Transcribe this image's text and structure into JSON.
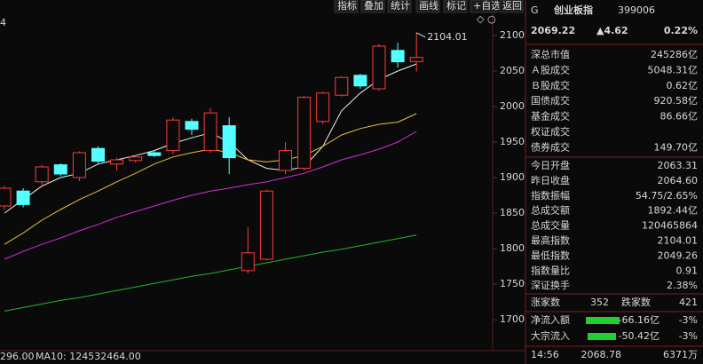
{
  "toolbar": {
    "corner_label": "4",
    "buttons": [
      "指标",
      "叠加",
      "统计",
      "画线",
      "标记",
      "+自选",
      "返回"
    ]
  },
  "chart_data": {
    "type": "candlestick",
    "ylim": [
      1660,
      2130
    ],
    "yticks": [
      1700,
      1750,
      1800,
      1850,
      1900,
      1950,
      2000,
      2050,
      2100
    ],
    "up_color": "#ff3c3c",
    "down_color": "#54ffff",
    "open": [
      1860,
      1881,
      1894,
      1918,
      1900,
      1941,
      1919,
      1924,
      1935,
      1938,
      1979,
      1938,
      1973,
      1769,
      1785,
      1910,
      1913,
      1979,
      2016,
      2044,
      2025,
      2079,
      2063.31
    ],
    "close": [
      1885,
      1862,
      1915,
      1905,
      1935,
      1923,
      1925,
      1929,
      1931,
      1981,
      1968,
      1991,
      1928,
      1794,
      1881,
      1938,
      2013,
      2019,
      2041,
      2029,
      2085,
      2063,
      2069.22
    ],
    "high": [
      1888,
      1885,
      1918,
      1920,
      1937,
      1944,
      1928,
      1932,
      1937,
      1985,
      1983,
      1998,
      1985,
      1830,
      1883,
      1950,
      2015,
      2021,
      2043,
      2046,
      2088,
      2090,
      2104.01
    ],
    "low": [
      1855,
      1858,
      1890,
      1902,
      1895,
      1920,
      1910,
      1921,
      1929,
      1933,
      1960,
      1935,
      1905,
      1765,
      1783,
      1905,
      1910,
      1975,
      2014,
      2025,
      2022,
      2055,
      2049.26
    ],
    "ma_lines": [
      {
        "color": "#f0f0f0",
        "values": [
          1850,
          1869,
          1888,
          1900,
          1906,
          1919,
          1925,
          1931,
          1938,
          1948,
          1956,
          1963,
          1950,
          1925,
          1913,
          1910,
          1915,
          1944,
          1994,
          2019,
          2038,
          2050,
          2060
        ]
      },
      {
        "color": "#e8c23a",
        "values": [
          1806,
          1822,
          1840,
          1855,
          1869,
          1881,
          1894,
          1906,
          1919,
          1929,
          1935,
          1940,
          1935,
          1925,
          1922,
          1925,
          1931,
          1944,
          1960,
          1969,
          1975,
          1978,
          1990
        ]
      },
      {
        "color": "#d22ed6",
        "values": [
          1785,
          1796,
          1806,
          1815,
          1825,
          1834,
          1844,
          1852,
          1860,
          1868,
          1875,
          1881,
          1885,
          1890,
          1894,
          1900,
          1906,
          1915,
          1925,
          1932,
          1940,
          1950,
          1965
        ]
      },
      {
        "color": "#1fb82e",
        "values": [
          1712,
          1717,
          1722,
          1727,
          1731,
          1736,
          1741,
          1746,
          1751,
          1756,
          1761,
          1765,
          1770,
          1775,
          1780,
          1785,
          1790,
          1795,
          1799,
          1804,
          1809,
          1814,
          1819
        ]
      }
    ],
    "annotation": 2104.01,
    "footer": [
      "296.00",
      "MA10: 124532464.00"
    ]
  },
  "panel": {
    "header": {
      "market": "G",
      "name": "创业板指",
      "code": "399006"
    },
    "quote": {
      "price": "2069.22",
      "change": "▲4.62",
      "percent": "0.22%"
    },
    "market_rows": [
      {
        "label": "深总市值",
        "value": "245286亿",
        "color": "#e8e8e8"
      },
      {
        "label": "Ａ股成交",
        "value": "5048.31亿",
        "color": "#e8c23a"
      },
      {
        "label": "Ｂ股成交",
        "value": "0.62亿",
        "color": "#e8c23a"
      },
      {
        "label": "国债成交",
        "value": "920.58亿",
        "color": "#e8c23a"
      },
      {
        "label": "基金成交",
        "value": "86.66亿",
        "color": "#e8c23a"
      },
      {
        "label": "权证成交"
      },
      {
        "label": "债券成交",
        "value": "149.70亿",
        "color": "#e8c23a"
      }
    ],
    "index_rows": [
      {
        "label": "今日开盘",
        "value": "2063.31",
        "color": "#ff3c3c"
      },
      {
        "label": "昨日收盘",
        "value": "2064.60",
        "color": "#e8e8e8"
      },
      {
        "label": "指数振幅",
        "value": "54.75/2.65%",
        "color": "#e8e8e8"
      },
      {
        "label": "总成交额",
        "value": "1892.44亿",
        "color": "#e8c23a"
      },
      {
        "label": "总成交量",
        "value": "120465864",
        "color": "#e8c23a"
      },
      {
        "label": "最高指数",
        "value": "2104.01",
        "color": "#ff3c3c"
      },
      {
        "label": "最低指数",
        "value": "2049.26",
        "color": "#ff3c3c"
      },
      {
        "label": "指数量比",
        "value": "0.91",
        "color": "#e8c23a"
      },
      {
        "label": "深证换手",
        "value": "2.38%",
        "color": "#e8e8e8"
      }
    ],
    "breadth": {
      "up_label": "涨家数",
      "up_value": 352,
      "down_label": "跌家数",
      "down_value": 421
    },
    "flow_rows": [
      {
        "label": "净流入额",
        "value": "-66.16亿",
        "percent": "-3%"
      },
      {
        "label": "大宗流入",
        "value": "-50.42亿",
        "percent": "-3%"
      }
    ],
    "tick": {
      "time": "14:56",
      "price": "2068.78",
      "volume": "6371万"
    }
  }
}
